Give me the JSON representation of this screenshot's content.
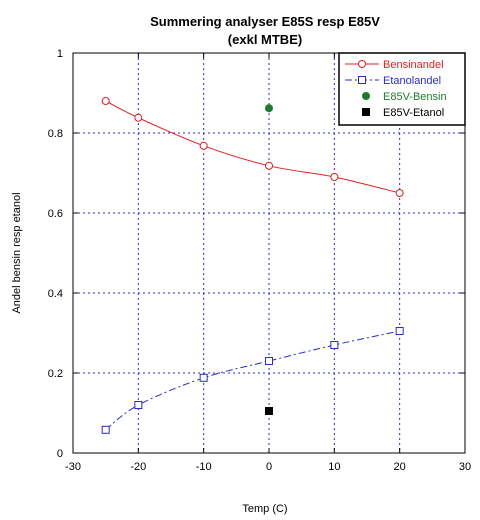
{
  "chart_data": {
    "type": "line",
    "title": "Summering analyser E85S resp E85V",
    "subtitle": "(exkl MTBE)",
    "xlabel": "Temp (C)",
    "ylabel": "Andel bensin resp etanol",
    "xlim": [
      -30,
      30
    ],
    "ylim": [
      0,
      1
    ],
    "xticks": [
      "-30",
      "-20",
      "-10",
      "0",
      "10",
      "20",
      "30"
    ],
    "yticks": [
      "0",
      "0.2",
      "0.4",
      "0.6",
      "0.8",
      "1"
    ],
    "grid": true,
    "legend_position": "top-right",
    "series": [
      {
        "name": "Bensinandel",
        "color": "#e02020",
        "marker": "open-circle",
        "line": "solid",
        "points": [
          [
            -25,
            0.88
          ],
          [
            -20,
            0.838
          ],
          [
            -10,
            0.768
          ],
          [
            0,
            0.718
          ],
          [
            10,
            0.69
          ],
          [
            20,
            0.65
          ]
        ]
      },
      {
        "name": "Etanolandel",
        "color": "#2a2ad0",
        "marker": "open-square",
        "line": "dashed",
        "points": [
          [
            -25,
            0.058
          ],
          [
            -20,
            0.12
          ],
          [
            -10,
            0.188
          ],
          [
            0,
            0.23
          ],
          [
            10,
            0.27
          ],
          [
            20,
            0.305
          ]
        ]
      },
      {
        "name": "E85V-Bensin",
        "color": "#1e7a2e",
        "marker": "filled-circle",
        "line": "none",
        "points": [
          [
            0,
            0.862
          ]
        ]
      },
      {
        "name": "E85V-Etanol",
        "color": "#000000",
        "marker": "filled-square",
        "line": "none",
        "points": [
          [
            0,
            0.105
          ]
        ]
      }
    ]
  }
}
